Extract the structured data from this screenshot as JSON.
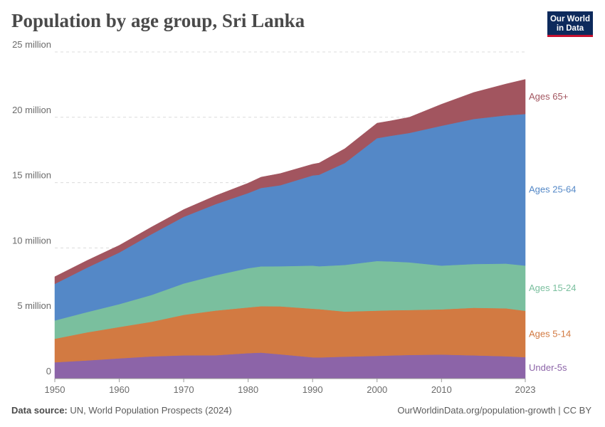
{
  "header": {
    "title": "Population by age group, Sri Lanka",
    "logo_line1": "Our World",
    "logo_line2": "in Data"
  },
  "footer": {
    "source_label": "Data source:",
    "source_text": " UN, World Population Prospects (2024)",
    "link_text": "OurWorldinData.org/population-growth | CC BY"
  },
  "chart_data": {
    "type": "area",
    "stacked": true,
    "title": "Population by age group, Sri Lanka",
    "xlim": [
      1950,
      2023
    ],
    "ylim": [
      0,
      25000000
    ],
    "x_ticks": [
      1950,
      1960,
      1970,
      1980,
      1990,
      2000,
      2010,
      2023
    ],
    "y_ticks": [
      {
        "value": 0,
        "label": "0"
      },
      {
        "value": 5000000,
        "label": "5 million"
      },
      {
        "value": 10000000,
        "label": "10 million"
      },
      {
        "value": 15000000,
        "label": "15 million"
      },
      {
        "value": 20000000,
        "label": "20 million"
      },
      {
        "value": 25000000,
        "label": "25 million"
      }
    ],
    "grid": "horizontal-dashed",
    "legend_placement": "right-inline",
    "x": [
      1950,
      1955,
      1960,
      1965,
      1970,
      1975,
      1980,
      1982,
      1985,
      1990,
      1991,
      1995,
      2000,
      2002,
      2005,
      2010,
      2015,
      2020,
      2023
    ],
    "series": [
      {
        "name": "Under-5s",
        "color": "#8c64a8",
        "values": [
          1250000,
          1390000,
          1550000,
          1700000,
          1780000,
          1790000,
          1950000,
          1990000,
          1860000,
          1630000,
          1620000,
          1680000,
          1740000,
          1770000,
          1810000,
          1840000,
          1780000,
          1710000,
          1640000
        ]
      },
      {
        "name": "Ages 5-14",
        "color": "#d27a42",
        "values": [
          1800000,
          2150000,
          2400000,
          2650000,
          3100000,
          3420000,
          3500000,
          3550000,
          3670000,
          3720000,
          3700000,
          3450000,
          3460000,
          3460000,
          3440000,
          3460000,
          3640000,
          3670000,
          3550000
        ]
      },
      {
        "name": "Ages 15-24",
        "color": "#7abf9e",
        "values": [
          1400000,
          1550000,
          1750000,
          2050000,
          2400000,
          2700000,
          3000000,
          3050000,
          3070000,
          3300000,
          3280000,
          3570000,
          3800000,
          3740000,
          3650000,
          3350000,
          3350000,
          3420000,
          3460000
        ]
      },
      {
        "name": "Ages 25-64",
        "color": "#5488c7",
        "values": [
          2800000,
          3400000,
          3950000,
          4650000,
          5100000,
          5450000,
          5750000,
          6000000,
          6200000,
          6900000,
          7000000,
          7800000,
          9400000,
          9600000,
          9900000,
          10700000,
          11100000,
          11350000,
          11600000
        ]
      },
      {
        "name": "Ages 65+",
        "color": "#a2555f",
        "values": [
          550000,
          550000,
          550000,
          550000,
          560000,
          650000,
          760000,
          830000,
          900000,
          860000,
          900000,
          1100000,
          1150000,
          1150000,
          1200000,
          1650000,
          2030000,
          2400000,
          2650000
        ]
      }
    ]
  }
}
